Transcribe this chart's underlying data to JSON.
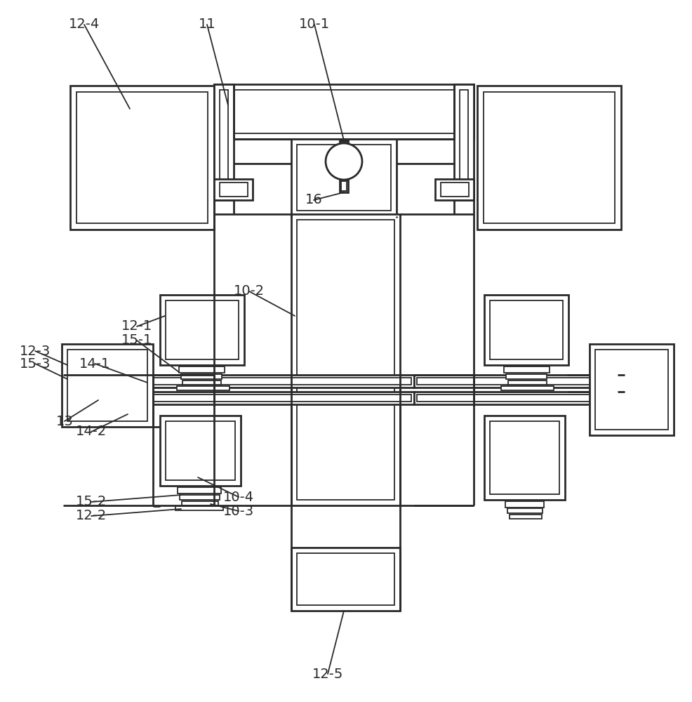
{
  "bg": "#ffffff",
  "lc": "#2a2a2a",
  "lw1": 2.0,
  "lw2": 1.3,
  "fs": 14,
  "fig_w": 9.86,
  "fig_h": 10.0,
  "dpi": 100
}
